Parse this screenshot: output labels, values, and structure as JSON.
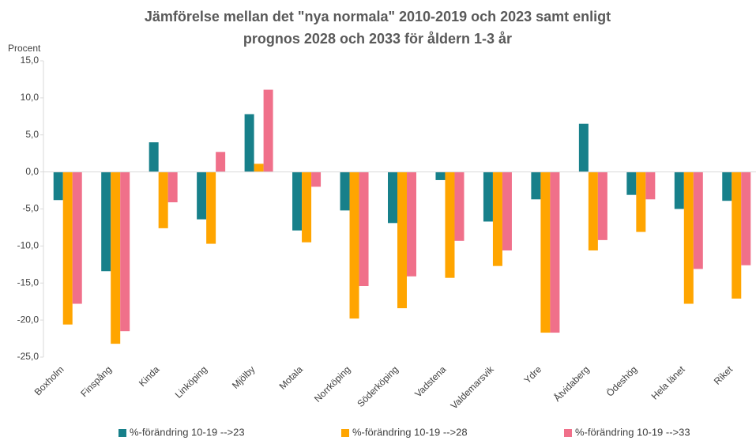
{
  "chart_data": {
    "type": "bar",
    "title": [
      "Jämförelse mellan det \"nya normala\" 2010-2019 och 2023 samt enligt",
      "prognos 2028 och 2033 för åldern 1-3 år"
    ],
    "y_label": "Procent",
    "categories": [
      "Boxholm",
      "Finspång",
      "Kinda",
      "Linköping",
      "Mjölby",
      "Motala",
      "Norrköping",
      "Söderköping",
      "Vadstena",
      "Valdemarsvik",
      "Ydre",
      "Åtvidaberg",
      "Ödeshög",
      "Hela länet",
      "Riket"
    ],
    "series": [
      {
        "name": "%-förändring 10-19 -->23",
        "color": "#17808a",
        "values": [
          -3.8,
          -13.4,
          4.0,
          -6.4,
          7.8,
          -7.9,
          -5.2,
          -6.9,
          -1.1,
          -6.7,
          -3.7,
          6.5,
          -3.1,
          -5.0,
          -3.9
        ]
      },
      {
        "name": "%-förändring 10-19 -->28",
        "color": "#ffa500",
        "values": [
          -20.6,
          -23.2,
          -7.6,
          -9.7,
          1.1,
          -9.5,
          -19.8,
          -18.4,
          -14.3,
          -12.7,
          -21.7,
          -10.6,
          -8.1,
          -17.8,
          -17.1
        ]
      },
      {
        "name": "%-förändring 10-19 -->33",
        "color": "#f0708a",
        "values": [
          -17.8,
          -21.5,
          -4.1,
          2.7,
          11.1,
          -2.0,
          -15.4,
          -14.1,
          -9.3,
          -10.6,
          -21.7,
          -9.2,
          -3.7,
          -13.1,
          -12.6
        ]
      }
    ],
    "ylim": [
      -25,
      15
    ],
    "yticks": [
      {
        "value": 15,
        "label": "15,0"
      },
      {
        "value": 10,
        "label": "10,0"
      },
      {
        "value": 5,
        "label": "5,0"
      },
      {
        "value": 0,
        "label": "0,0"
      },
      {
        "value": -5,
        "label": "-5,0"
      },
      {
        "value": -10,
        "label": "-10,0"
      },
      {
        "value": -15,
        "label": "-15,0"
      },
      {
        "value": -20,
        "label": "-20,0"
      },
      {
        "value": -25,
        "label": "-25,0"
      }
    ],
    "grid": false
  }
}
